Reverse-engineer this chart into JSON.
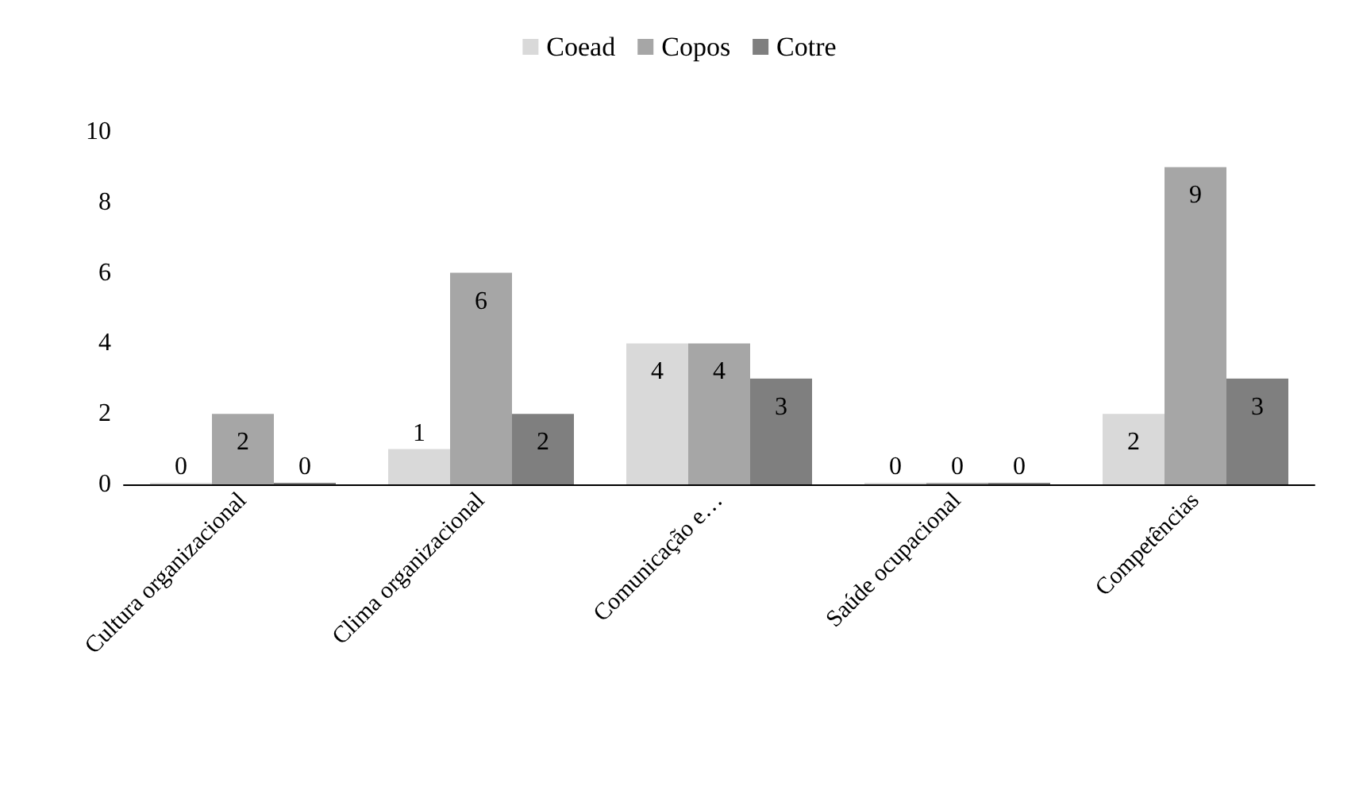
{
  "chart_data": {
    "type": "bar",
    "categories": [
      "Cultura organizacional",
      "Clima organizacional",
      "Comunicação e…",
      "Saúde ocupacional",
      "Competências"
    ],
    "series": [
      {
        "name": "Coead",
        "color": "#d9d9d9",
        "values": [
          0,
          1,
          4,
          0,
          2
        ]
      },
      {
        "name": "Copos",
        "color": "#a6a6a6",
        "values": [
          2,
          6,
          4,
          0,
          9
        ]
      },
      {
        "name": "Cotre",
        "color": "#7f7f7f",
        "values": [
          0,
          2,
          3,
          0,
          3
        ]
      }
    ],
    "ylim": [
      0,
      10
    ],
    "yticks": [
      0,
      2,
      4,
      6,
      8,
      10
    ],
    "grid": false,
    "legend": "top",
    "data_labels": true
  }
}
